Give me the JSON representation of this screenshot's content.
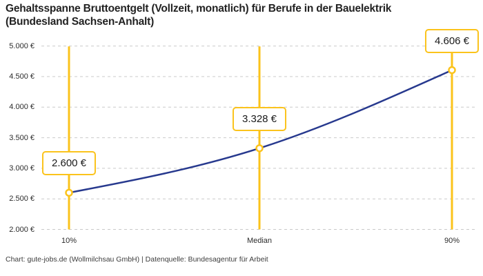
{
  "title": {
    "lines": [
      "Gehaltsspanne Bruttoentgelt (Vollzeit, monatlich) für Berufe in der Bauelektrik",
      "(Bundesland Sachsen-Anhalt)"
    ]
  },
  "footer": {
    "text": "Chart: gute-jobs.de (Wollmilchsau GmbH) | Datenquelle: Bundesagentur für Arbeit"
  },
  "chart_data": {
    "type": "line",
    "title": "Gehaltsspanne Bruttoentgelt (Vollzeit, monatlich) für Berufe in der Bauelektrik (Bundesland Sachsen-Anhalt)",
    "x_categories": [
      "10%",
      "Median",
      "90%"
    ],
    "points": [
      {
        "label": "10%",
        "value": 2600,
        "value_label": "2.600 €"
      },
      {
        "label": "Median",
        "value": 3328,
        "value_label": "3.328 €"
      },
      {
        "label": "90%",
        "value": 4606,
        "value_label": "4.606 €"
      }
    ],
    "ylim": [
      2000,
      5000
    ],
    "y_ticks": [
      {
        "value": 5000,
        "label": "5.000 €"
      },
      {
        "value": 4500,
        "label": "4.500 €"
      },
      {
        "value": 4000,
        "label": "4.000 €"
      },
      {
        "value": 3500,
        "label": "3.500 €"
      },
      {
        "value": 3000,
        "label": "3.000 €"
      },
      {
        "value": 2500,
        "label": "2.500 €"
      },
      {
        "value": 2000,
        "label": "2.000 €"
      }
    ],
    "grid": "horizontal-dashed",
    "legend": "none",
    "colors": {
      "line": "#27398E",
      "highlight": "#FBC31B",
      "grid": "#C9C9C9",
      "title_text": "#222222",
      "axis_text": "#2B2B2B",
      "box_bg": "#FFFFFF"
    }
  }
}
